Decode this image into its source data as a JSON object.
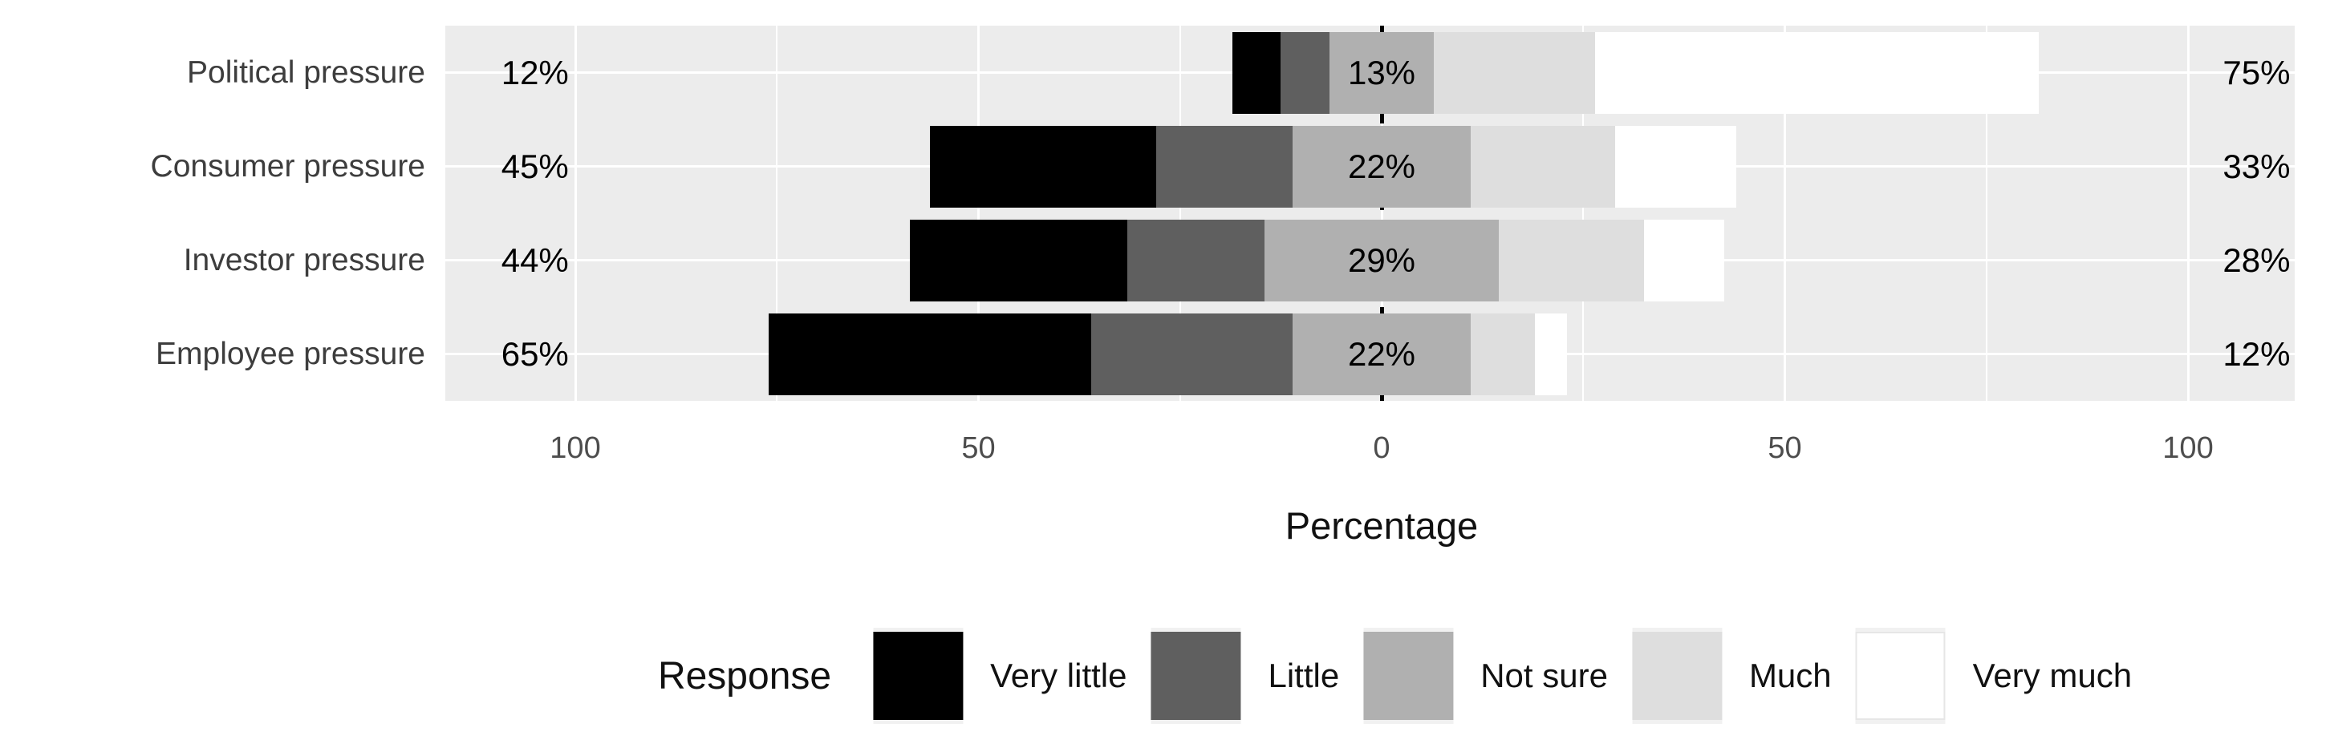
{
  "chart_data": {
    "type": "bar",
    "subtype": "diverging_stacked_likert",
    "title": "",
    "xlabel": "Percentage",
    "ylabel": "",
    "categories": [
      "Political pressure",
      "Consumer pressure",
      "Investor pressure",
      "Employee pressure"
    ],
    "series": [
      {
        "name": "Very little",
        "color": "#000000",
        "values": [
          6,
          28,
          27,
          40
        ]
      },
      {
        "name": "Little",
        "color": "#5F5F5F",
        "values": [
          6,
          17,
          17,
          25
        ]
      },
      {
        "name": "Not sure",
        "color": "#B0B0B0",
        "values": [
          13,
          22,
          29,
          22
        ]
      },
      {
        "name": "Much",
        "color": "#DEDEDE",
        "values": [
          20,
          18,
          18,
          8
        ]
      },
      {
        "name": "Very much",
        "color": "#FFFFFF",
        "values": [
          55,
          15,
          10,
          4
        ]
      }
    ],
    "row_value_labels": {
      "left": [
        "12%",
        "45%",
        "44%",
        "65%"
      ],
      "center": [
        "13%",
        "22%",
        "29%",
        "22%"
      ],
      "right": [
        "75%",
        "33%",
        "28%",
        "12%"
      ]
    },
    "x_ticks": [
      {
        "value": -100,
        "label": "100"
      },
      {
        "value": -50,
        "label": "50"
      },
      {
        "value": 0,
        "label": "0"
      },
      {
        "value": 50,
        "label": "50"
      },
      {
        "value": 100,
        "label": "100"
      }
    ],
    "x_minor_ticks": [
      -75,
      -25,
      25,
      75
    ],
    "x_range": [
      -116,
      113
    ],
    "grid": true,
    "zero_line": {
      "style": "dashed",
      "color": "#000000"
    },
    "legend": {
      "position": "bottom",
      "title": "Response",
      "items": [
        "Very little",
        "Little",
        "Not sure",
        "Much",
        "Very much"
      ]
    },
    "colors": {
      "panel_background": "#ECECEC",
      "gridline": "#FFFFFF",
      "axis_text": "#4D4D4D",
      "category_text": "#3D3D3D",
      "label_text": "#000000"
    }
  }
}
